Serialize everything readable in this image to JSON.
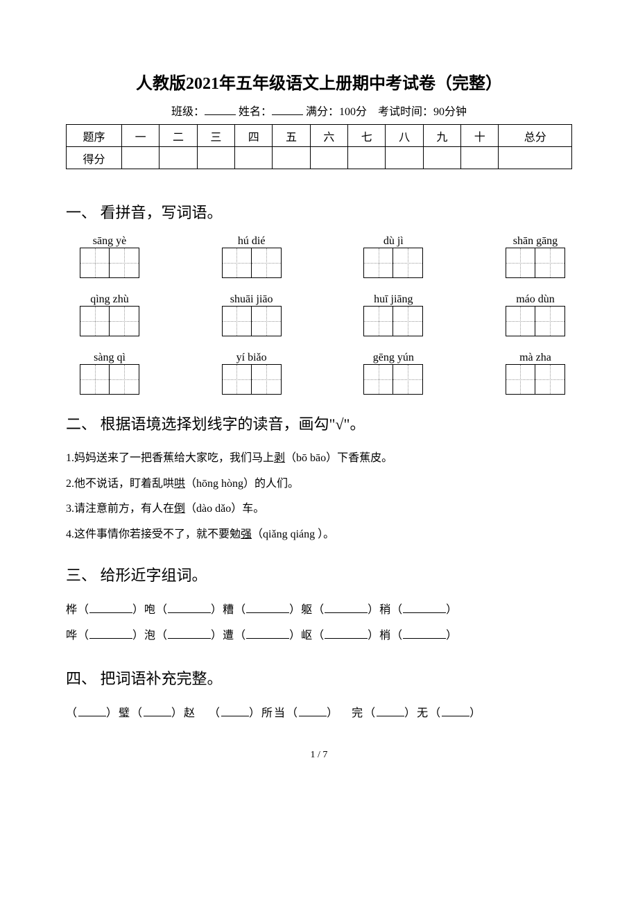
{
  "title": "人教版2021年五年级语文上册期中考试卷（完整）",
  "info": {
    "class_label": "班级：",
    "name_label": "姓名：",
    "score_label": "满分：100分",
    "time_label": "考试时间：90分钟"
  },
  "score_table": {
    "row1_label": "题序",
    "row2_label": "得分",
    "cols": [
      "一",
      "二",
      "三",
      "四",
      "五",
      "六",
      "七",
      "八",
      "九",
      "十",
      "总分"
    ]
  },
  "section1": {
    "heading": "一、 看拼音，写词语。",
    "pinyin_rows": [
      [
        "sāng yè",
        "hú dié",
        "dù jì",
        "shān gāng"
      ],
      [
        "qìng zhù",
        "shuāi jiāo",
        "huī jiāng",
        "máo dùn"
      ],
      [
        "sàng qì",
        "yí biǎo",
        "gēng yún",
        "mà zha"
      ]
    ]
  },
  "section2": {
    "heading": "二、 根据语境选择划线字的读音，画勾\"√\"。",
    "items": [
      {
        "pre": "1.妈妈送来了一把香蕉给大家吃，我们马上",
        "u": "剥",
        "post": "（bō  bāo）下香蕉皮。"
      },
      {
        "pre": "2.他不说话，盯着乱哄",
        "u": "哄",
        "post": "（hōng hòng）的人们。"
      },
      {
        "pre": "3.请注意前方，有人在",
        "u": "倒",
        "post": "（dào dǎo）车。"
      },
      {
        "pre": "4.这件事情你若接受不了，就不要勉",
        "u": "强",
        "post": "（qiǎng qiáng ）。"
      }
    ]
  },
  "section3": {
    "heading": "三、 给形近字组词。",
    "rows": [
      [
        "桦",
        "咆",
        "糟",
        "躯",
        "稍"
      ],
      [
        "哗",
        "泡",
        "遭",
        "岖",
        "梢"
      ]
    ]
  },
  "section4": {
    "heading": "四、 把词语补充完整。",
    "line": "（____）璧（____）赵　（____）所当（____）　完（____）无（____）"
  },
  "page_num": "1 / 7"
}
